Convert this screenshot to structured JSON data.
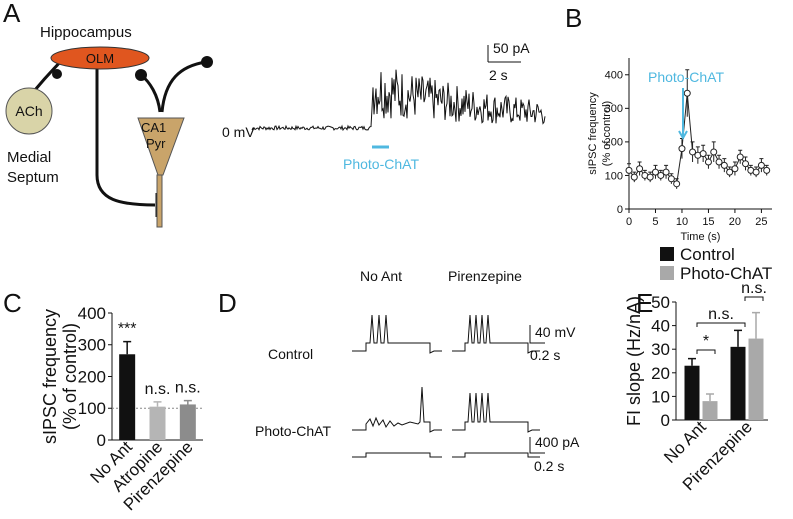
{
  "panels": {
    "A": {
      "letter": "A",
      "region": "Hippocampus",
      "interneuron": "OLM",
      "source": "ACh",
      "source_area": [
        "Medial",
        "Septum"
      ],
      "target": [
        "CA1",
        "Pyr"
      ],
      "scale_current": "50 pA",
      "scale_time": "2 s",
      "holding": "0 mV",
      "stimulus": "Photo-ChAT"
    },
    "B": {
      "letter": "B"
    },
    "C": {
      "letter": "C"
    },
    "D": {
      "letter": "D",
      "columns": [
        "No Ant",
        "Pirenzepine"
      ],
      "rows": [
        "Control",
        "Photo-ChAT"
      ],
      "scale_voltage": "40 mV",
      "scale_time_v": "0.2 s",
      "scale_current": "400 pA",
      "scale_time_i": "0.2 s"
    },
    "E": {
      "letter": "E"
    }
  },
  "chart_data": [
    {
      "type": "line",
      "ylabel": [
        "sIPSC frequency",
        "(% of control)"
      ],
      "xlabel": "Time (s)",
      "annotation": "Photo-ChAT",
      "annotation_color": "#4fb8e0",
      "x": [
        0,
        1,
        2,
        3,
        4,
        5,
        6,
        7,
        8,
        9,
        10,
        11,
        12,
        13,
        14,
        15,
        16,
        17,
        18,
        19,
        20,
        21,
        22,
        23,
        24,
        25,
        26
      ],
      "series": [
        {
          "color": "#222222",
          "values": [
            115,
            95,
            120,
            100,
            95,
            110,
            100,
            110,
            90,
            75,
            180,
            345,
            170,
            160,
            165,
            140,
            170,
            140,
            130,
            110,
            120,
            155,
            135,
            115,
            110,
            130,
            115
          ],
          "errors": [
            20,
            15,
            20,
            15,
            15,
            20,
            15,
            20,
            15,
            15,
            30,
            70,
            30,
            25,
            25,
            20,
            30,
            20,
            20,
            15,
            20,
            20,
            20,
            15,
            15,
            20,
            15
          ]
        }
      ],
      "xlim": [
        0,
        27
      ],
      "ylim": [
        0,
        450
      ],
      "xticks": [
        0,
        5,
        10,
        15,
        20,
        25
      ],
      "yticks": [
        0,
        100,
        200,
        300,
        400
      ]
    },
    {
      "type": "bar",
      "ylabel": [
        "sIPSC frequency",
        "(% of control)"
      ],
      "categories": [
        "No Ant",
        "Atropine",
        "Pirenzepine"
      ],
      "values": [
        270,
        105,
        112
      ],
      "errors": [
        40,
        15,
        12
      ],
      "colors": [
        "#111111",
        "#b5b5b5",
        "#8c8c8c"
      ],
      "annotations": [
        "***",
        "n.s.",
        "n.s."
      ],
      "refline": 100,
      "ylim": [
        0,
        400
      ],
      "yticks": [
        0,
        100,
        200,
        300,
        400
      ]
    },
    {
      "type": "grouped-bar",
      "ylabel": [
        "FI slope (Hz/nA)"
      ],
      "categories": [
        "No Ant",
        "Pirenzepine"
      ],
      "series": [
        {
          "name": "Control",
          "color": "#111111",
          "values": [
            23,
            31
          ],
          "errors": [
            3,
            7
          ]
        },
        {
          "name": "Photo-ChAT",
          "color": "#a9a9a9",
          "values": [
            8,
            34.5
          ],
          "errors": [
            3,
            11
          ]
        }
      ],
      "annotations": [
        "*",
        "n.s.",
        "n.s."
      ],
      "ylim": [
        0,
        50
      ],
      "yticks": [
        0,
        10,
        20,
        30,
        40,
        50
      ]
    }
  ]
}
